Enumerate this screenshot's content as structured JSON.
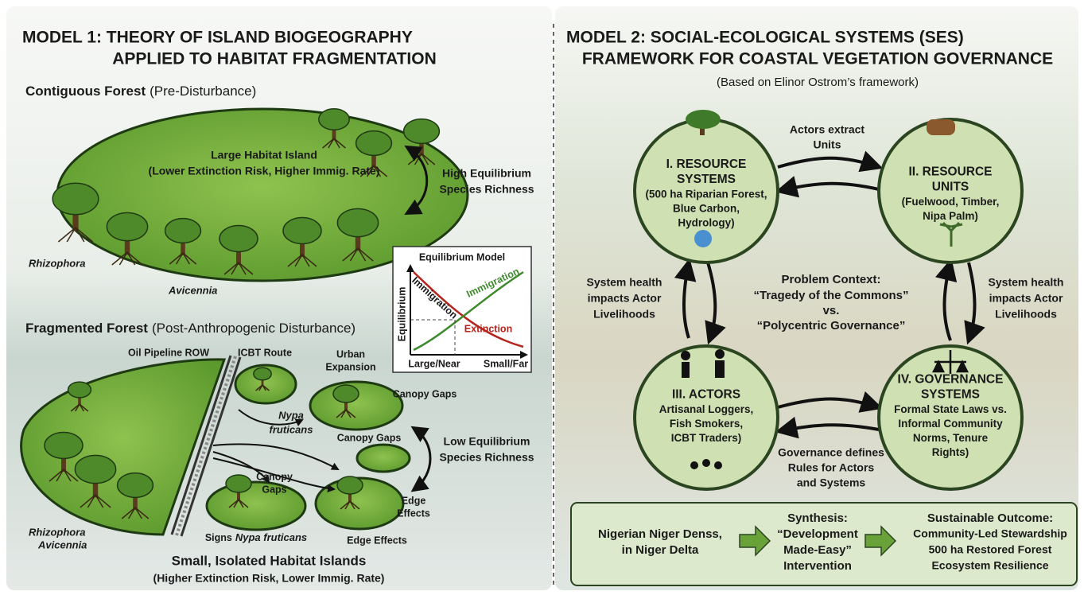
{
  "model1": {
    "title": [
      "MODEL 1: THEORY OF ISLAND BIOGEOGRAPHY",
      "APPLIED TO HABITAT FRAGMENTATION"
    ],
    "contiguous": {
      "heading": "Contiguous Forest",
      "note": "(Pre-Disturbance)",
      "island_label": "Large Habitat Island",
      "island_note": "(Lower Extinction Risk, Higher Immig. Rate)",
      "richness": [
        "High Equilibrium",
        "Species Richness"
      ],
      "species": [
        "Rhizophora",
        "Avicennia"
      ]
    },
    "equilibrium_model": {
      "title": "Equilibrium Model",
      "y_axis": "Equilibrium",
      "x_left": "Large/Near",
      "x_right": "Small/Far",
      "curve_immigration_left": "Immigration",
      "curve_immigration_right": "Immigration",
      "curve_extinction": "Extinction"
    },
    "fragmented": {
      "heading": "Fragmented Forest",
      "note": "(Post-Anthropogenic Disturbance)",
      "pipeline": "Oil Pipeline ROW",
      "route": "ICBT Route",
      "urban": [
        "Urban",
        "Expansion"
      ],
      "canopy_gaps": [
        "Canopy Gaps",
        "Canopy Gaps",
        "Canopy",
        "Gaps"
      ],
      "nypa": [
        "Nypa",
        "fruticans"
      ],
      "richness": [
        "Low Equilibrium",
        "Species Richness"
      ],
      "edge_effects": [
        [
          "Edge",
          "Effects"
        ],
        "Edge Effects"
      ],
      "signs": {
        "prefix": "Signs",
        "species": "Nypa fruticans"
      },
      "species": [
        "Rhizophora",
        "Avicennia"
      ],
      "islands_label": "Small, Isolated Habitat Islands",
      "islands_note": "(Higher Extinction Risk, Lower Immig. Rate)"
    }
  },
  "model2": {
    "title": [
      "MODEL 2: SOCIAL-ECOLOGICAL SYSTEMS (SES)",
      "FRAMEWORK FOR COASTAL VEGETATION GOVERNANCE"
    ],
    "subtitle": "(Based on Elinor Ostrom’s framework)",
    "nodes": [
      {
        "title": [
          "I. RESOURCE",
          "SYSTEMS"
        ],
        "body": [
          "(500 ha Riparian Forest,",
          "Blue Carbon,",
          "Hydrology)"
        ]
      },
      {
        "title": [
          "II. RESOURCE",
          "UNITS"
        ],
        "body": [
          "(Fuelwood, Timber,",
          "Nipa Palm)"
        ]
      },
      {
        "title": [
          "III. ACTORS"
        ],
        "body": [
          "Artisanal Loggers,",
          "Fish Smokers,",
          "ICBT Traders)"
        ]
      },
      {
        "title": [
          "IV. GOVERNANCE",
          "SYSTEMS"
        ],
        "body": [
          "Formal State Laws vs.",
          "Informal Community",
          "Norms, Tenure",
          "Rights)"
        ]
      }
    ],
    "edges": {
      "top": [
        "Actors extract",
        "Units"
      ],
      "left": [
        "System health",
        "impacts Actor",
        "Livelihoods"
      ],
      "right": [
        "System health",
        "impacts Actor",
        "Livelihoods"
      ],
      "bottom": [
        "Governance defines",
        "Rules for Actors",
        "and Systems"
      ]
    },
    "center": [
      "Problem Context:",
      "“Tragedy of the Commons”",
      "vs.",
      "“Polycentric Governance”"
    ],
    "synthesis": {
      "context": [
        "Nigerian Niger Denss,",
        "in Niger Delta"
      ],
      "intervention": [
        "Synthesis:",
        "“Development",
        "Made-Easy”",
        "Intervention"
      ],
      "outcome": [
        "Sustainable Outcome:",
        "Community-Led Stewardship",
        "500 ha Restored Forest",
        "Ecosystem Resilience"
      ]
    }
  }
}
